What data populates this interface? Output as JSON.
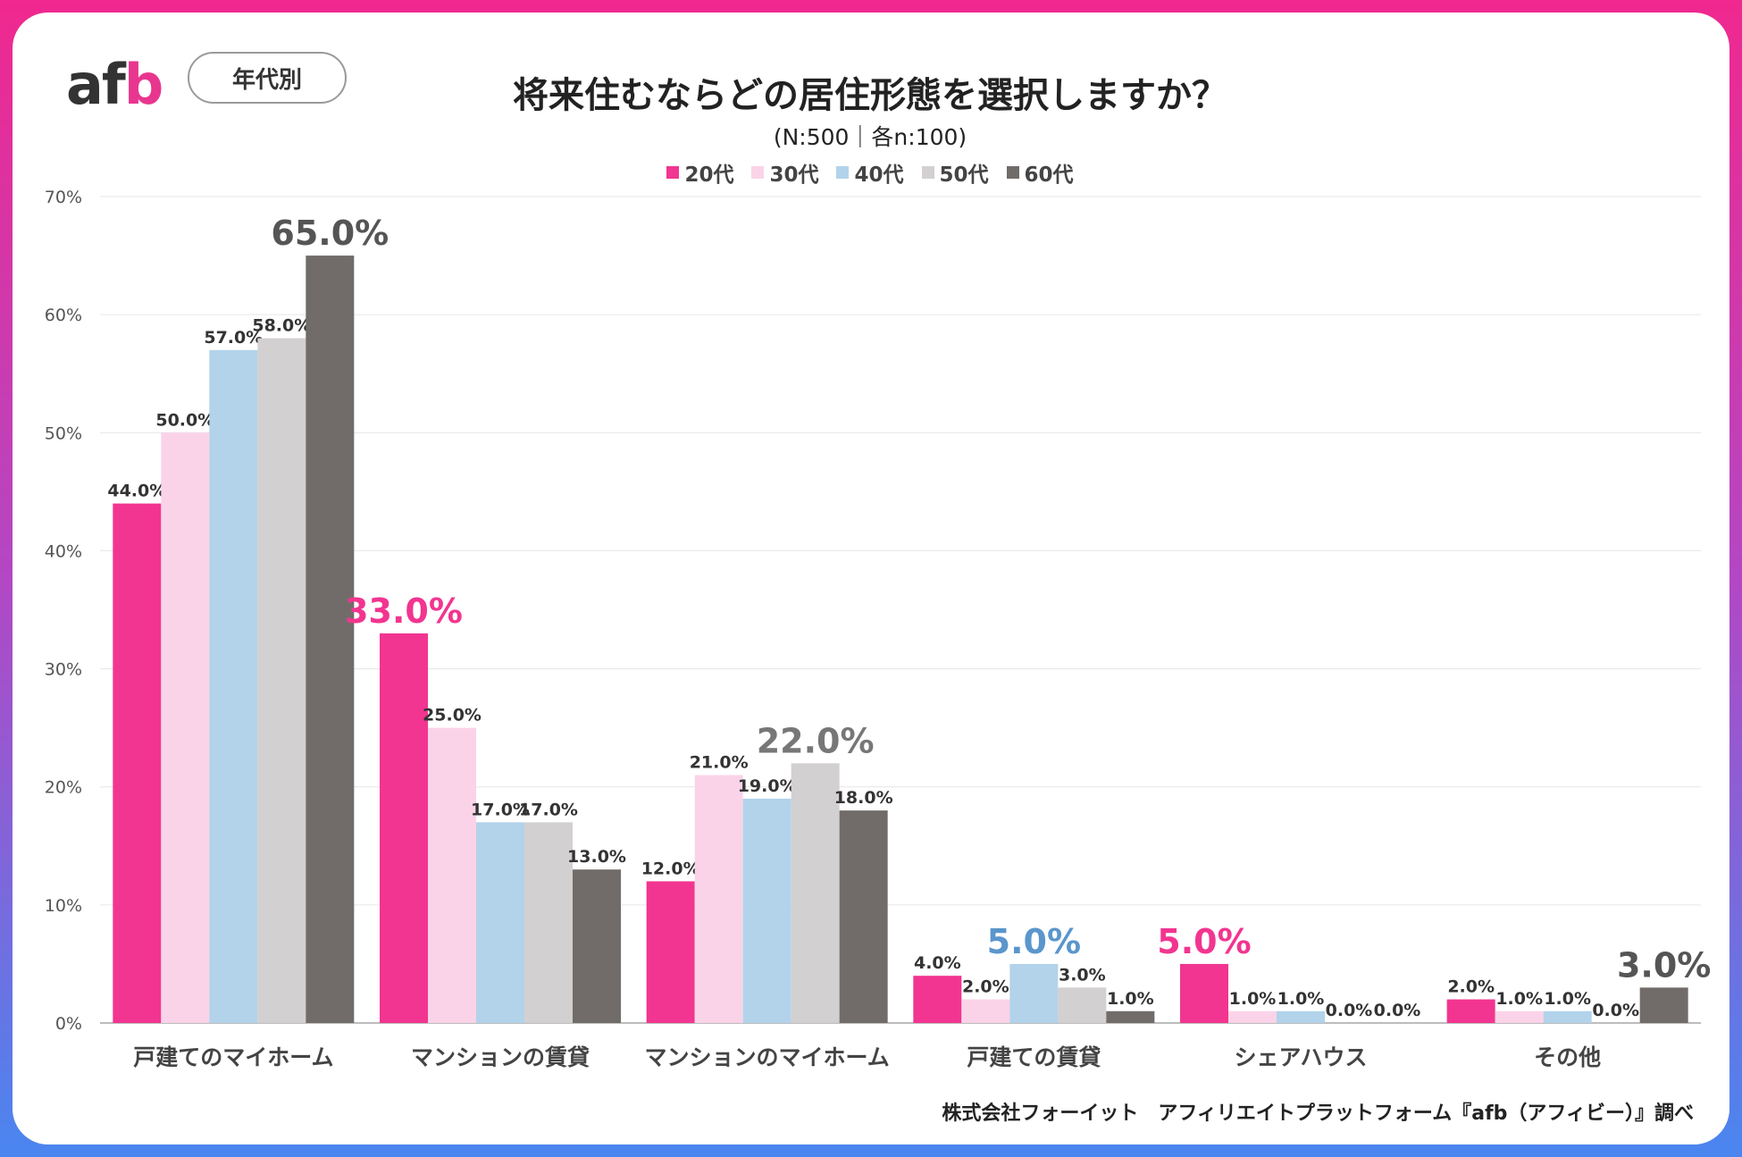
{
  "header": {
    "logo_text_a": "af",
    "logo_text_b": "b",
    "tag": "年代別",
    "title": "将来住むならどの居住形態を選択しますか？",
    "subtitle": "(N:500｜各n:100)"
  },
  "footer": {
    "credit": "株式会社フォーイット　アフィリエイトプラットフォーム『afb（アフィビー）』調べ"
  },
  "chart_data": {
    "type": "bar",
    "title": "将来住むならどの居住形態を選択しますか？",
    "categories": [
      "戸建てのマイホーム",
      "マンションの賃貸",
      "マンションのマイホーム",
      "戸建ての賃貸",
      "シェアハウス",
      "その他"
    ],
    "series": [
      {
        "name": "20代",
        "color": "#f23590",
        "values": [
          44.0,
          33.0,
          12.0,
          4.0,
          5.0,
          2.0
        ]
      },
      {
        "name": "30代",
        "color": "#fbd3e8",
        "values": [
          50.0,
          25.0,
          21.0,
          2.0,
          1.0,
          1.0
        ]
      },
      {
        "name": "40代",
        "color": "#b2d3ea",
        "values": [
          57.0,
          17.0,
          19.0,
          5.0,
          1.0,
          1.0
        ]
      },
      {
        "name": "50代",
        "color": "#d3d0d1",
        "values": [
          58.0,
          17.0,
          22.0,
          3.0,
          0.0,
          0.0
        ]
      },
      {
        "name": "60代",
        "color": "#716c6a",
        "values": [
          65.0,
          13.0,
          18.0,
          1.0,
          0.0,
          3.0
        ]
      }
    ],
    "y_ticks": [
      "0%",
      "10%",
      "20%",
      "30%",
      "40%",
      "50%",
      "60%",
      "70%"
    ],
    "ylim": [
      0,
      70
    ],
    "grid": true,
    "legend_position": "top-center",
    "highlights": [
      {
        "category_index": 0,
        "series_index": 4,
        "color": "#555555"
      },
      {
        "category_index": 1,
        "series_index": 0,
        "color": "#f23590"
      },
      {
        "category_index": 2,
        "series_index": 3,
        "color": "#777777"
      },
      {
        "category_index": 3,
        "series_index": 2,
        "color": "#5a96cc"
      },
      {
        "category_index": 4,
        "series_index": 0,
        "color": "#f23590"
      },
      {
        "category_index": 5,
        "series_index": 4,
        "color": "#555555"
      }
    ]
  }
}
